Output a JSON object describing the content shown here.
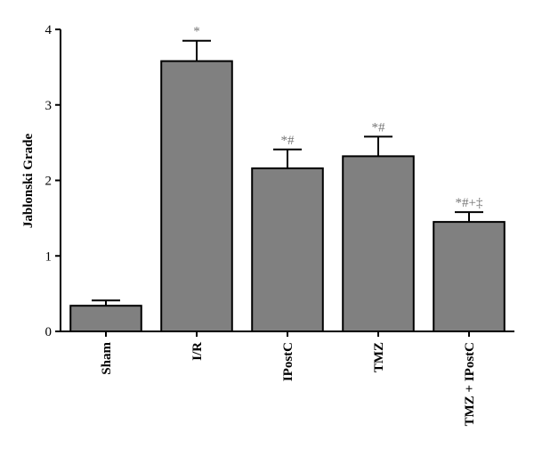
{
  "chart_data": {
    "type": "bar",
    "y_label": "Jablonski Grade",
    "categories": [
      "Sham",
      "I/R",
      "IPostC",
      "TMZ",
      "TMZ + IPostC"
    ],
    "values": [
      0.34,
      3.58,
      2.16,
      2.32,
      1.45
    ],
    "errors": [
      0.07,
      0.27,
      0.25,
      0.26,
      0.13
    ],
    "annotations": [
      null,
      "*",
      "*#",
      "*#",
      "*#+‡"
    ],
    "color": "#808080",
    "ylim": [
      0,
      4
    ],
    "yticks": [
      0,
      1,
      2,
      3,
      4
    ]
  }
}
